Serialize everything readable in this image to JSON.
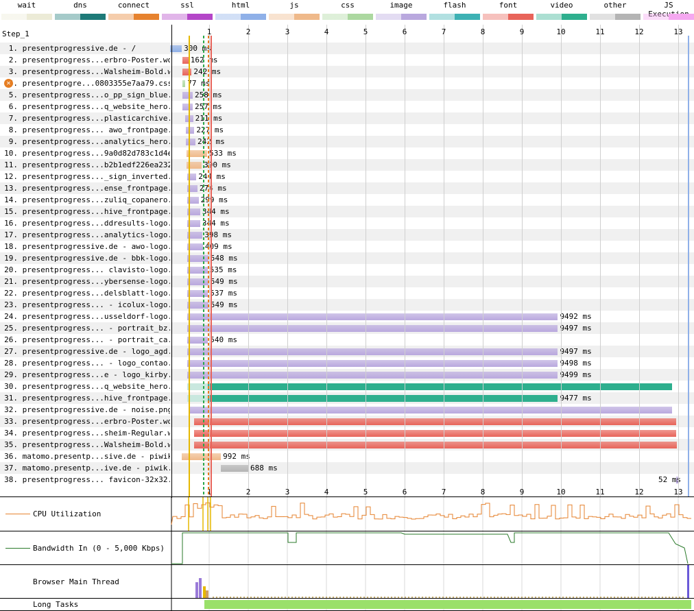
{
  "legend": [
    {
      "label": "wait",
      "color": "#ecebd7"
    },
    {
      "label": "dns",
      "color": "#1e7a78"
    },
    {
      "label": "connect",
      "color": "#e6822e"
    },
    {
      "label": "ssl",
      "color": "#b446c8"
    },
    {
      "label": "html",
      "color": "#8fb0e8"
    },
    {
      "label": "js",
      "color": "#efb98a"
    },
    {
      "label": "css",
      "color": "#acd8a0"
    },
    {
      "label": "image",
      "color": "#b9a8de"
    },
    {
      "label": "flash",
      "color": "#3db1b4"
    },
    {
      "label": "font",
      "color": "#e8645a"
    },
    {
      "label": "video",
      "color": "#2eaf8e"
    },
    {
      "label": "other",
      "color": "#b4b4b4"
    },
    {
      "label": "JS Execution",
      "color": "#f5a8f0"
    }
  ],
  "step_label": "Step_1",
  "timeline_ticks": [
    "1",
    "2",
    "3",
    "4",
    "5",
    "6",
    "7",
    "8",
    "9",
    "10",
    "11",
    "12",
    "13"
  ],
  "requests": [
    {
      "num": "1.",
      "url": "presentprogressive.de - /",
      "duration": "300 ms",
      "start": 0.0,
      "end": 0.3,
      "type": "html"
    },
    {
      "num": "2.",
      "url": "presentprogress...erbro-Poster.woff2",
      "duration": "162 ms",
      "start": 0.31,
      "end": 0.47,
      "type": "font"
    },
    {
      "num": "3.",
      "url": "presentprogress...Walsheim-Bold.woff",
      "duration": "242 ms",
      "start": 0.31,
      "end": 0.55,
      "type": "font"
    },
    {
      "num": "4.",
      "url": "presentprogre...0803355e7aa79.css",
      "duration": "77 ms",
      "start": 0.31,
      "end": 0.39,
      "type": "css",
      "error": true
    },
    {
      "num": "5.",
      "url": "presentprogress...o_pp_sign_blue.svg",
      "duration": "258 ms",
      "start": 0.32,
      "end": 0.58,
      "type": "image"
    },
    {
      "num": "6.",
      "url": "presentprogress...q_website_hero.jpg",
      "duration": "257 ms",
      "start": 0.32,
      "end": 0.58,
      "type": "image"
    },
    {
      "num": "7.",
      "url": "presentprogress...plasticarchive.jpg",
      "duration": "211 ms",
      "start": 0.38,
      "end": 0.59,
      "type": "image"
    },
    {
      "num": "8.",
      "url": "presentprogress... awo_frontpage.jpg",
      "duration": "227 ms",
      "start": 0.4,
      "end": 0.62,
      "type": "image"
    },
    {
      "num": "9.",
      "url": "presentprogress...analytics_hero.jpg",
      "duration": "242 ms",
      "start": 0.41,
      "end": 0.65,
      "type": "image"
    },
    {
      "num": "10.",
      "url": "presentprogress...9a0d82d783c1d4e.js",
      "duration": "533 ms",
      "start": 0.42,
      "end": 0.95,
      "type": "js"
    },
    {
      "num": "11.",
      "url": "presentprogress...b2b1edf226ea232.js",
      "duration": "390 ms",
      "start": 0.42,
      "end": 0.81,
      "type": "js"
    },
    {
      "num": "12.",
      "url": "presentprogress..._sign_inverted.svg",
      "duration": "244 ms",
      "start": 0.43,
      "end": 0.67,
      "type": "image"
    },
    {
      "num": "13.",
      "url": "presentprogress...ense_frontpage.jpg",
      "duration": "274 ms",
      "start": 0.43,
      "end": 0.7,
      "type": "image"
    },
    {
      "num": "14.",
      "url": "presentprogress...zuliq_copanero.jpg",
      "duration": "299 ms",
      "start": 0.43,
      "end": 0.73,
      "type": "image"
    },
    {
      "num": "15.",
      "url": "presentprogress...hive_frontpage.jpg",
      "duration": "344 ms",
      "start": 0.43,
      "end": 0.77,
      "type": "image"
    },
    {
      "num": "16.",
      "url": "presentprogress...ddresults-logo.svg",
      "duration": "344 ms",
      "start": 0.43,
      "end": 0.77,
      "type": "image"
    },
    {
      "num": "17.",
      "url": "presentprogress...analytics-logo.svg",
      "duration": "398 ms",
      "start": 0.43,
      "end": 0.83,
      "type": "image"
    },
    {
      "num": "18.",
      "url": "presentprogressive.de - awo-logo.svg",
      "duration": "409 ms",
      "start": 0.43,
      "end": 0.84,
      "type": "image"
    },
    {
      "num": "19.",
      "url": "presentprogressive.de - bbk-logo.svg",
      "duration": "548 ms",
      "start": 0.43,
      "end": 0.98,
      "type": "image"
    },
    {
      "num": "20.",
      "url": "presentprogress... clavisto-logo.svg",
      "duration": "535 ms",
      "start": 0.43,
      "end": 0.96,
      "type": "image"
    },
    {
      "num": "21.",
      "url": "presentprogress...ybersense-logo.svg",
      "duration": "549 ms",
      "start": 0.43,
      "end": 0.98,
      "type": "image"
    },
    {
      "num": "22.",
      "url": "presentprogress...delsblatt-logo.svg",
      "duration": "537 ms",
      "start": 0.43,
      "end": 0.97,
      "type": "image"
    },
    {
      "num": "23.",
      "url": "presentprogress... - icolux-logo.svg",
      "duration": "549 ms",
      "start": 0.43,
      "end": 0.98,
      "type": "image"
    },
    {
      "num": "24.",
      "url": "presentprogress...usseldorf-logo.svg",
      "duration": "9492 ms",
      "start": 0.43,
      "end": 9.92,
      "type": "image"
    },
    {
      "num": "25.",
      "url": "presentprogress... - portrait_bz.jpg",
      "duration": "9497 ms",
      "start": 0.43,
      "end": 9.92,
      "type": "image"
    },
    {
      "num": "26.",
      "url": "presentprogress... - portrait_ca.jpg",
      "duration": "540 ms",
      "start": 0.43,
      "end": 0.97,
      "type": "image"
    },
    {
      "num": "27.",
      "url": "presentprogressive.de - logo_agd.svg",
      "duration": "9497 ms",
      "start": 0.43,
      "end": 9.92,
      "type": "image"
    },
    {
      "num": "28.",
      "url": "presentprogress... - logo_contao.svg",
      "duration": "9498 ms",
      "start": 0.43,
      "end": 9.92,
      "type": "image"
    },
    {
      "num": "29.",
      "url": "presentprogress...e - logo_kirby.svg",
      "duration": "9499 ms",
      "start": 0.43,
      "end": 9.92,
      "type": "image"
    },
    {
      "num": "30.",
      "url": "presentprogress...q_website_hero.mp4",
      "duration": "",
      "start": 0.43,
      "end": 12.85,
      "type": "video"
    },
    {
      "num": "31.",
      "url": "presentprogress...hive_frontpage.mp4",
      "duration": "9477 ms",
      "start": 0.43,
      "end": 9.92,
      "type": "video"
    },
    {
      "num": "32.",
      "url": "presentprogressive.de - noise.png",
      "duration": "",
      "start": 0.5,
      "end": 12.85,
      "type": "image"
    },
    {
      "num": "33.",
      "url": "presentprogress...erbro-Poster.woff2",
      "duration": "",
      "start": 0.62,
      "end": 12.95,
      "type": "font"
    },
    {
      "num": "34.",
      "url": "presentprogress...sheim-Regular.woff",
      "duration": "",
      "start": 0.62,
      "end": 12.95,
      "type": "font"
    },
    {
      "num": "35.",
      "url": "presentprogress...Walsheim-Bold.woff",
      "duration": "",
      "start": 0.62,
      "end": 12.97,
      "type": "font"
    },
    {
      "num": "36.",
      "url": "matomo.presentp...sive.de - piwik.js",
      "duration": "992 ms",
      "start": 0.29,
      "end": 1.3,
      "type": "js"
    },
    {
      "num": "37.",
      "url": "matomo.presentp...ive.de - piwik.php",
      "duration": "688 ms",
      "start": 1.3,
      "end": 2.0,
      "type": "other"
    },
    {
      "num": "38.",
      "url": "presentprogress... favicon-32x32.png",
      "duration": "52 ms",
      "start": 12.95,
      "end": 13.0,
      "type": "image"
    }
  ],
  "graphs": {
    "cpu": {
      "label": "CPU Utilization",
      "color": "#e6822e"
    },
    "bandwidth": {
      "label": "Bandwidth In (0 - 5,000 Kbps)",
      "color": "#2a7a2a"
    },
    "main_thread": {
      "label": "Browser Main Thread"
    },
    "long_tasks": {
      "label": "Long Tasks",
      "color": "#9ae06a"
    }
  }
}
